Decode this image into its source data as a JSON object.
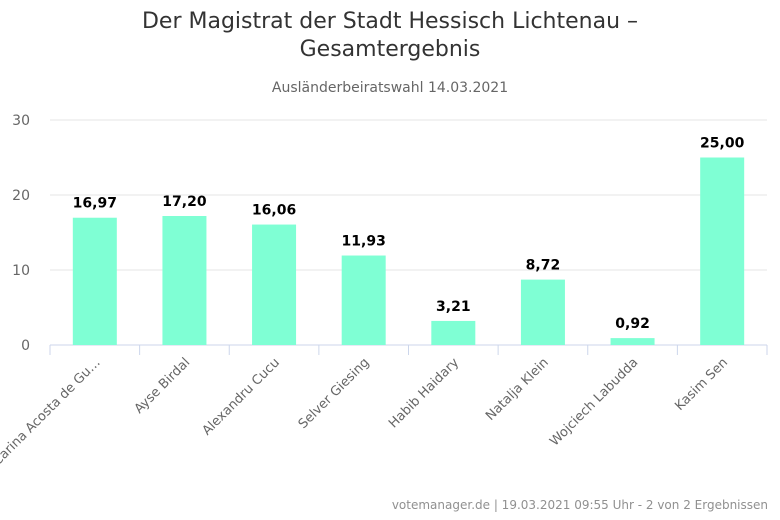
{
  "chart_data": {
    "type": "bar",
    "title": "Der Magistrat der Stadt Hessisch Lichtenau - Gesamtergebnis",
    "title_lines": [
      "Der Magistrat der Stadt Hessisch Lichtenau –",
      "Gesamtergebnis"
    ],
    "subtitle": "Ausländerbeiratswahl 14.03.2021",
    "categories": [
      "Carina Acosta de Gu…",
      "Ayse Birdal",
      "Alexandru Cucu",
      "Selver Giesing",
      "Habib Haidary",
      "Natalja Klein",
      "Wojciech Labudda",
      "Kasim Sen"
    ],
    "values": [
      16.97,
      17.2,
      16.06,
      11.93,
      3.21,
      8.72,
      0.92,
      25.0
    ],
    "value_labels": [
      "16,97",
      "17,20",
      "16,06",
      "11,93",
      "3,21",
      "8,72",
      "0,92",
      "25,00"
    ],
    "ylim": [
      0,
      30
    ],
    "yticks": [
      0,
      10,
      20,
      30
    ],
    "grid": true,
    "legend": "none",
    "bar_color": "#7fffd4"
  },
  "credits": "votemanager.de | 19.03.2021 09:55 Uhr - 2 von 2 Ergebnissen"
}
